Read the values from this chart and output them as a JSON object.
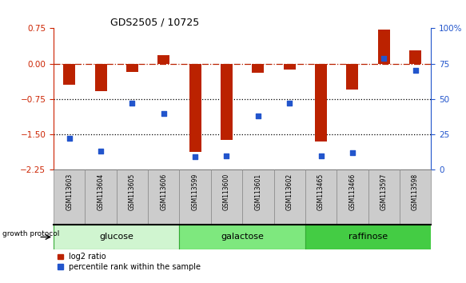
{
  "title": "GDS2505 / 10725",
  "samples": [
    "GSM113603",
    "GSM113604",
    "GSM113605",
    "GSM113606",
    "GSM113599",
    "GSM113600",
    "GSM113601",
    "GSM113602",
    "GSM113465",
    "GSM113466",
    "GSM113597",
    "GSM113598"
  ],
  "log2_ratio": [
    -0.45,
    -0.58,
    -0.18,
    0.18,
    -1.87,
    -1.62,
    -0.2,
    -0.13,
    -1.65,
    -0.55,
    0.72,
    0.28
  ],
  "percentile_rank": [
    22,
    13,
    47,
    40,
    9,
    10,
    38,
    47,
    10,
    12,
    79,
    70
  ],
  "groups": [
    {
      "label": "glucose",
      "start": 0,
      "end": 4,
      "color": "#d0f5d0"
    },
    {
      "label": "galactose",
      "start": 4,
      "end": 8,
      "color": "#7ee87e"
    },
    {
      "label": "raffinose",
      "start": 8,
      "end": 12,
      "color": "#44cc44"
    }
  ],
  "ylim_left": [
    -2.25,
    0.75
  ],
  "ylim_right": [
    0,
    100
  ],
  "yticks_left": [
    0.75,
    0.0,
    -0.75,
    -1.5,
    -2.25
  ],
  "yticks_right": [
    100,
    75,
    50,
    25,
    0
  ],
  "ytick_labels_right": [
    "100%",
    "75",
    "50",
    "25",
    "0"
  ],
  "dotted_lines": [
    -0.75,
    -1.5
  ],
  "bar_color": "#bb2200",
  "dot_color": "#2255cc",
  "background_color": "#ffffff",
  "legend_log2": "log2 ratio",
  "legend_pct": "percentile rank within the sample",
  "growth_protocol_label": "growth protocol",
  "left_axis_color": "#cc2200",
  "right_axis_color": "#2255cc",
  "group_border_color": "#33aa33",
  "sample_box_color": "#cccccc",
  "sample_box_border": "#888888"
}
